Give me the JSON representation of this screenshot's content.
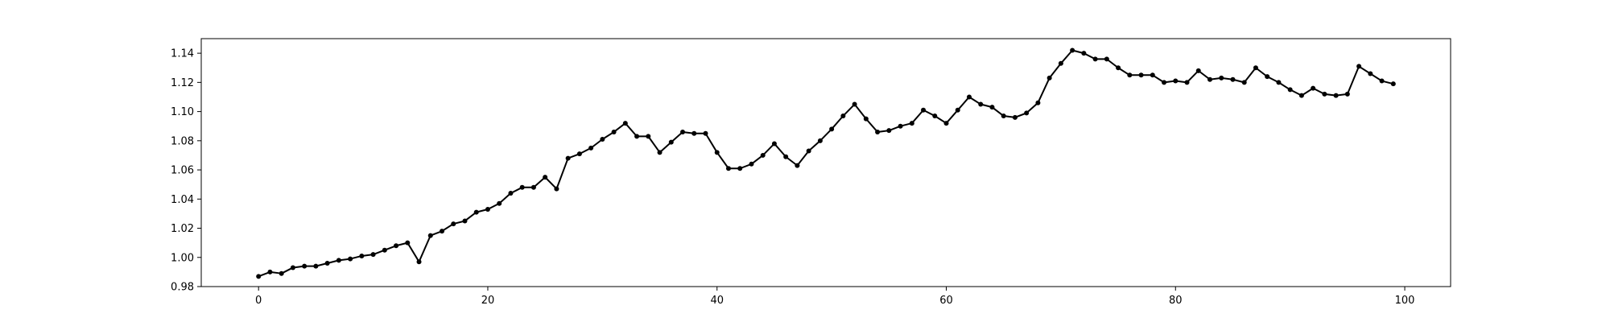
{
  "chart_data": {
    "type": "line",
    "title": "",
    "xlabel": "",
    "ylabel": "",
    "xlim": [
      -5,
      104
    ],
    "ylim": [
      0.98,
      1.15
    ],
    "x_ticks": [
      0,
      20,
      40,
      60,
      80,
      100
    ],
    "x_tick_labels": [
      "0",
      "20",
      "40",
      "60",
      "80",
      "100"
    ],
    "y_ticks": [
      0.98,
      1.0,
      1.02,
      1.04,
      1.06,
      1.08,
      1.1,
      1.12,
      1.14
    ],
    "y_tick_labels": [
      "0.98",
      "1.00",
      "1.02",
      "1.04",
      "1.06",
      "1.08",
      "1.10",
      "1.12",
      "1.14"
    ],
    "grid": false,
    "legend": "none",
    "line_color": "#000000",
    "marker": "circle",
    "series": [
      {
        "x": [
          0,
          1,
          2,
          3,
          4,
          5,
          6,
          7,
          8,
          9,
          10,
          11,
          12,
          13,
          14,
          15,
          16,
          17,
          18,
          19,
          20,
          21,
          22,
          23,
          24,
          25,
          26,
          27,
          28,
          29,
          30,
          31,
          32,
          33,
          34,
          35,
          36,
          37,
          38,
          39,
          40,
          41,
          42,
          43,
          44,
          45,
          46,
          47,
          48,
          49,
          50,
          51,
          52,
          53,
          54,
          55,
          56,
          57,
          58,
          59,
          60,
          61,
          62,
          63,
          64,
          65,
          66,
          67,
          68,
          69,
          70,
          71,
          72,
          73,
          74,
          75,
          76,
          77,
          78,
          79,
          80,
          81,
          82,
          83,
          84,
          85,
          86,
          87,
          88,
          89,
          90,
          91,
          92,
          93,
          94,
          95,
          96,
          97,
          98,
          99
        ],
        "values": [
          0.987,
          0.99,
          0.989,
          0.993,
          0.994,
          0.994,
          0.996,
          0.998,
          0.999,
          1.001,
          1.002,
          1.005,
          1.008,
          1.01,
          0.997,
          1.015,
          1.018,
          1.023,
          1.025,
          1.031,
          1.033,
          1.037,
          1.044,
          1.048,
          1.048,
          1.055,
          1.047,
          1.068,
          1.071,
          1.075,
          1.081,
          1.086,
          1.092,
          1.083,
          1.083,
          1.072,
          1.079,
          1.086,
          1.085,
          1.085,
          1.072,
          1.061,
          1.061,
          1.064,
          1.07,
          1.078,
          1.069,
          1.063,
          1.073,
          1.08,
          1.088,
          1.097,
          1.105,
          1.095,
          1.086,
          1.087,
          1.09,
          1.092,
          1.101,
          1.097,
          1.092,
          1.101,
          1.11,
          1.105,
          1.103,
          1.097,
          1.096,
          1.099,
          1.106,
          1.123,
          1.133,
          1.142,
          1.14,
          1.136,
          1.136,
          1.13,
          1.125,
          1.125,
          1.125,
          1.12,
          1.121,
          1.12,
          1.128,
          1.122,
          1.123,
          1.122,
          1.12,
          1.13,
          1.124,
          1.12,
          1.115,
          1.111,
          1.116,
          1.112,
          1.111,
          1.112,
          1.131,
          1.126,
          1.121,
          1.119
        ]
      }
    ]
  }
}
